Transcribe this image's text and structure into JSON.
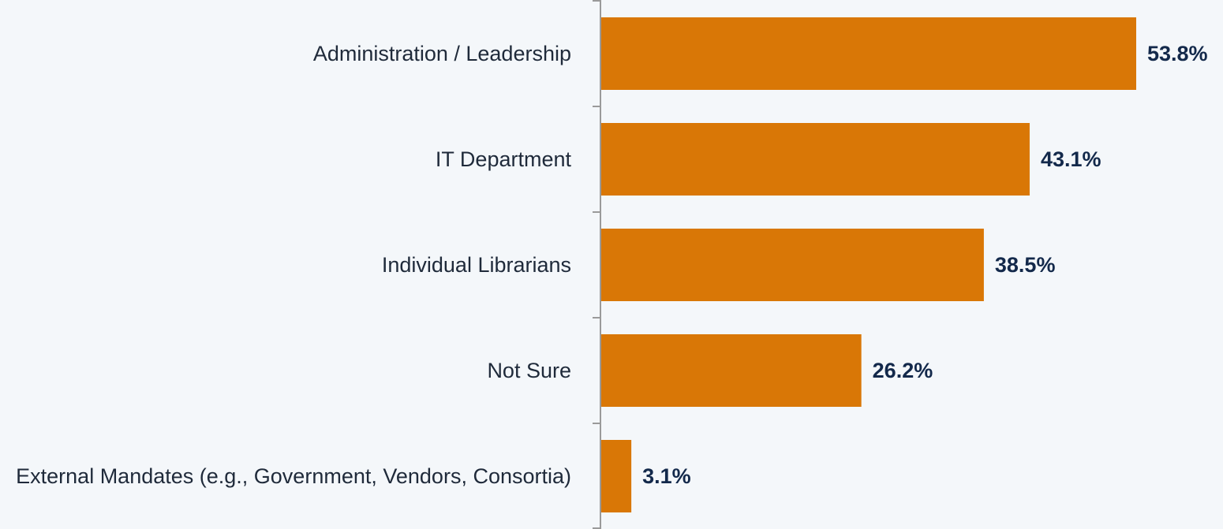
{
  "chart_data": {
    "type": "barh",
    "categories": [
      "Administration / Leadership",
      "IT Department",
      "Individual Librarians",
      "Not Sure",
      "External Mandates (e.g., Government, Vendors, Consortia)"
    ],
    "values": [
      53.8,
      43.1,
      38.5,
      26.2,
      3.1
    ],
    "value_labels": [
      "53.8%",
      "43.1%",
      "38.5%",
      "26.2%",
      "3.1%"
    ],
    "color": "#d97706"
  }
}
